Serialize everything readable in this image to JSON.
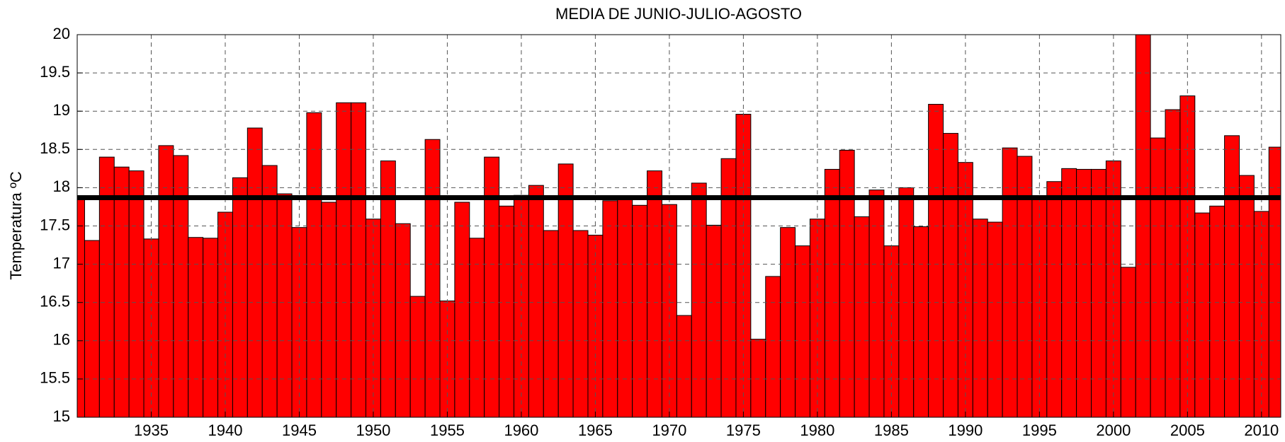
{
  "chart_data": {
    "type": "bar",
    "title": "MEDIA DE JUNIO-JULIO-AGOSTO",
    "ylabel": "Temperatura ºC",
    "x": [
      1930,
      1931,
      1932,
      1933,
      1934,
      1935,
      1936,
      1937,
      1938,
      1939,
      1940,
      1941,
      1942,
      1943,
      1944,
      1945,
      1946,
      1947,
      1948,
      1949,
      1950,
      1951,
      1952,
      1953,
      1954,
      1955,
      1956,
      1957,
      1958,
      1959,
      1960,
      1961,
      1962,
      1963,
      1964,
      1965,
      1966,
      1967,
      1968,
      1969,
      1970,
      1971,
      1972,
      1973,
      1974,
      1975,
      1976,
      1977,
      1978,
      1979,
      1980,
      1981,
      1982,
      1983,
      1984,
      1985,
      1986,
      1987,
      1988,
      1989,
      1990,
      1991,
      1992,
      1993,
      1994,
      1995,
      1996,
      1997,
      1998,
      1999,
      2000,
      2001,
      2002,
      2003,
      2004,
      2005,
      2006,
      2007,
      2008,
      2009,
      2010,
      2011
    ],
    "values": [
      17.87,
      17.31,
      18.4,
      18.27,
      18.22,
      17.33,
      18.55,
      18.42,
      17.35,
      17.34,
      17.68,
      18.13,
      18.78,
      18.29,
      17.92,
      17.48,
      18.98,
      17.81,
      19.11,
      19.11,
      17.59,
      18.35,
      17.53,
      16.58,
      18.63,
      16.52,
      17.81,
      17.34,
      18.4,
      17.76,
      17.9,
      18.03,
      17.44,
      18.31,
      17.44,
      17.38,
      17.83,
      17.89,
      17.77,
      18.22,
      17.78,
      16.33,
      18.06,
      17.51,
      18.38,
      18.96,
      16.02,
      16.84,
      17.48,
      17.24,
      17.59,
      18.24,
      18.49,
      17.62,
      17.97,
      17.24,
      18.0,
      17.49,
      19.09,
      18.71,
      18.33,
      17.59,
      17.55,
      18.52,
      18.41,
      17.86,
      18.08,
      18.25,
      18.24,
      18.24,
      18.35,
      16.96,
      20.0,
      18.65,
      19.02,
      19.2,
      17.67,
      17.76,
      18.68,
      18.16,
      17.69,
      18.53
    ],
    "color": "#ff0000",
    "reference_line": 17.87,
    "reference_color": "#000000",
    "xlim": [
      1930,
      2011.3
    ],
    "xticks": [
      1935,
      1940,
      1945,
      1950,
      1955,
      1960,
      1965,
      1970,
      1975,
      1980,
      1985,
      1990,
      1995,
      2000,
      2005,
      2010
    ],
    "ylim": [
      15,
      20
    ],
    "yticks": [
      15,
      15.5,
      16,
      16.5,
      17,
      17.5,
      18,
      18.5,
      19,
      19.5,
      20
    ],
    "grid": true
  }
}
